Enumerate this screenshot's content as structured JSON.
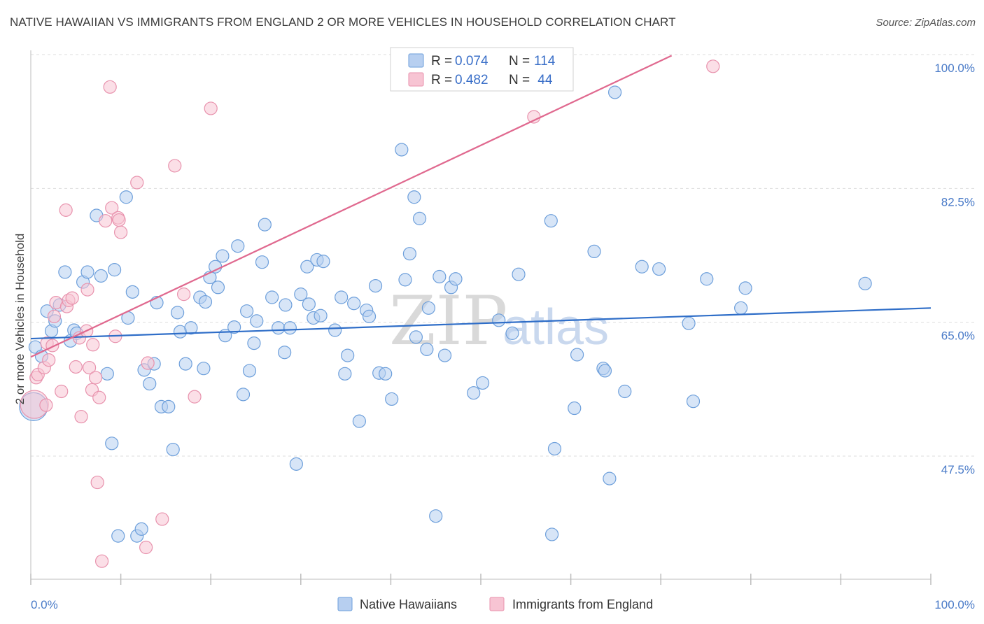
{
  "title": "NATIVE HAWAIIAN VS IMMIGRANTS FROM ENGLAND 2 OR MORE VEHICLES IN HOUSEHOLD CORRELATION CHART",
  "source": "Source: ZipAtlas.com",
  "watermark": {
    "zip": "ZIP",
    "atlas": "atlas"
  },
  "colors": {
    "blue_fill": "#b7cff0",
    "blue_stroke": "#6d9fdb",
    "blue_line": "#2f6ec8",
    "pink_fill": "#f7c4d3",
    "pink_stroke": "#e892ad",
    "pink_line": "#e0698f",
    "tick_text": "#4a7bc8",
    "grid": "#dddddd"
  },
  "legend": {
    "rows": [
      {
        "r_label": "R = ",
        "r_value": "0.074",
        "n_label": "N = ",
        "n_value": "114",
        "color": "blue"
      },
      {
        "r_label": "R = ",
        "r_value": "0.482",
        "n_label": "N = ",
        "n_value": " 44",
        "color": "pink"
      }
    ]
  },
  "bottom_legend": [
    "Native Hawaiians",
    "Immigrants from England"
  ],
  "chart_data": {
    "type": "scatter",
    "title": "NATIVE HAWAIIAN VS IMMIGRANTS FROM ENGLAND 2 OR MORE VEHICLES IN HOUSEHOLD CORRELATION CHART",
    "ylabel": "2 or more Vehicles in Household",
    "xlabel": "",
    "xlim": [
      0,
      100
    ],
    "ylim": [
      30,
      102
    ],
    "x_tick_labels": [
      "0.0%",
      "100.0%"
    ],
    "y_ticks": [
      47.5,
      65.0,
      82.5,
      100.0
    ],
    "y_tick_labels": [
      "47.5%",
      "65.0%",
      "82.5%",
      "100.0%"
    ],
    "grid": "horizontal dashed",
    "legend_position": "top-center",
    "series": [
      {
        "name": "Native Hawaiians",
        "color": "blue",
        "trend": {
          "x": [
            0,
            100
          ],
          "y": [
            64.6,
            68.6
          ]
        },
        "points": [
          [
            0.3,
            55.7,
            3
          ],
          [
            0.5,
            63.5,
            1
          ],
          [
            1.2,
            62.3,
            1
          ],
          [
            1.8,
            68.2,
            1
          ],
          [
            2.3,
            65.6,
            1
          ],
          [
            2.7,
            66.9,
            1
          ],
          [
            3.2,
            69.0,
            1
          ],
          [
            3.8,
            73.3,
            1
          ],
          [
            4.4,
            64.3,
            1
          ],
          [
            4.8,
            65.7,
            1
          ],
          [
            5.1,
            65.3,
            1
          ],
          [
            5.8,
            72.0,
            1
          ],
          [
            6.3,
            73.3,
            1
          ],
          [
            7.3,
            80.7,
            1
          ],
          [
            7.8,
            72.8,
            1
          ],
          [
            8.5,
            60.0,
            1
          ],
          [
            9.0,
            50.9,
            1
          ],
          [
            9.3,
            73.6,
            1
          ],
          [
            9.7,
            38.8,
            1
          ],
          [
            10.6,
            83.1,
            1
          ],
          [
            10.8,
            67.3,
            1
          ],
          [
            11.3,
            70.7,
            1
          ],
          [
            11.8,
            38.8,
            1
          ],
          [
            12.3,
            39.7,
            1
          ],
          [
            12.6,
            60.5,
            1
          ],
          [
            13.2,
            58.7,
            1
          ],
          [
            13.7,
            61.3,
            1
          ],
          [
            14.0,
            69.3,
            1
          ],
          [
            14.5,
            55.7,
            1
          ],
          [
            15.3,
            55.7,
            1
          ],
          [
            15.8,
            50.1,
            1
          ],
          [
            16.3,
            68.0,
            1
          ],
          [
            16.6,
            65.5,
            1
          ],
          [
            17.2,
            61.3,
            1
          ],
          [
            17.8,
            66.0,
            1
          ],
          [
            18.8,
            70.0,
            1
          ],
          [
            19.2,
            60.7,
            1
          ],
          [
            19.4,
            69.4,
            1
          ],
          [
            19.9,
            72.6,
            1
          ],
          [
            20.5,
            74.0,
            1
          ],
          [
            20.8,
            71.3,
            1
          ],
          [
            21.3,
            75.4,
            1
          ],
          [
            21.6,
            65.0,
            1
          ],
          [
            22.6,
            66.1,
            1
          ],
          [
            23.0,
            76.7,
            1
          ],
          [
            23.6,
            57.3,
            1
          ],
          [
            24.0,
            68.2,
            1
          ],
          [
            24.3,
            60.4,
            1
          ],
          [
            24.8,
            64.0,
            1
          ],
          [
            25.1,
            66.9,
            1
          ],
          [
            25.7,
            74.6,
            1
          ],
          [
            26.0,
            79.5,
            1
          ],
          [
            26.8,
            70.0,
            1
          ],
          [
            27.5,
            66.0,
            1
          ],
          [
            28.2,
            62.8,
            1
          ],
          [
            28.3,
            69.0,
            1
          ],
          [
            28.8,
            66.0,
            1
          ],
          [
            29.5,
            48.2,
            1
          ],
          [
            30.0,
            70.4,
            1
          ],
          [
            30.7,
            74.0,
            1
          ],
          [
            30.9,
            69.1,
            1
          ],
          [
            31.4,
            67.3,
            1
          ],
          [
            31.8,
            74.9,
            1
          ],
          [
            32.2,
            67.6,
            1
          ],
          [
            32.5,
            74.7,
            1
          ],
          [
            33.8,
            65.7,
            1
          ],
          [
            34.5,
            70.0,
            1
          ],
          [
            34.9,
            60.0,
            1
          ],
          [
            35.2,
            62.4,
            1
          ],
          [
            35.9,
            69.2,
            1
          ],
          [
            36.5,
            53.8,
            1
          ],
          [
            37.3,
            68.3,
            1
          ],
          [
            37.6,
            67.5,
            1
          ],
          [
            38.3,
            71.5,
            1
          ],
          [
            38.7,
            60.1,
            1
          ],
          [
            39.4,
            60.0,
            1
          ],
          [
            40.1,
            56.7,
            1
          ],
          [
            41.2,
            89.3,
            1
          ],
          [
            41.6,
            72.3,
            1
          ],
          [
            42.1,
            75.7,
            1
          ],
          [
            42.6,
            83.1,
            1
          ],
          [
            42.8,
            64.8,
            1
          ],
          [
            43.2,
            80.3,
            1
          ],
          [
            44.0,
            63.2,
            1
          ],
          [
            44.2,
            68.6,
            1
          ],
          [
            45.0,
            41.4,
            1
          ],
          [
            45.4,
            72.7,
            1
          ],
          [
            46.0,
            62.4,
            1
          ],
          [
            46.7,
            71.3,
            1
          ],
          [
            47.2,
            72.4,
            1
          ],
          [
            49.2,
            57.5,
            1
          ],
          [
            50.2,
            58.8,
            1
          ],
          [
            52.0,
            67.0,
            1
          ],
          [
            53.5,
            65.3,
            1
          ],
          [
            54.2,
            73.0,
            1
          ],
          [
            57.8,
            80.0,
            1
          ],
          [
            57.9,
            39.0,
            1
          ],
          [
            58.2,
            50.2,
            1
          ],
          [
            60.4,
            55.5,
            1
          ],
          [
            60.7,
            62.5,
            1
          ],
          [
            62.6,
            76.0,
            1
          ],
          [
            63.6,
            60.7,
            1
          ],
          [
            63.8,
            60.4,
            1
          ],
          [
            64.3,
            46.3,
            1
          ],
          [
            64.9,
            96.8,
            1
          ],
          [
            66.0,
            57.7,
            1
          ],
          [
            67.9,
            74.0,
            1
          ],
          [
            69.8,
            73.7,
            1
          ],
          [
            73.1,
            66.6,
            1
          ],
          [
            73.6,
            56.4,
            1
          ],
          [
            75.1,
            72.4,
            1
          ],
          [
            78.9,
            68.6,
            1
          ],
          [
            79.4,
            71.2,
            1
          ],
          [
            92.7,
            71.8,
            1
          ]
        ]
      },
      {
        "name": "Immigrants from England",
        "color": "pink",
        "trend": {
          "x": [
            0,
            71.2
          ],
          "y": [
            62.2,
            101.6
          ]
        },
        "points": [
          [
            0.4,
            56.0,
            3
          ],
          [
            0.6,
            59.5,
            1
          ],
          [
            0.8,
            59.9,
            1
          ],
          [
            1.5,
            60.8,
            1
          ],
          [
            1.7,
            55.9,
            1
          ],
          [
            1.8,
            64.0,
            1
          ],
          [
            2.0,
            61.8,
            1
          ],
          [
            2.4,
            63.7,
            1
          ],
          [
            2.6,
            67.5,
            1
          ],
          [
            2.8,
            69.3,
            1
          ],
          [
            3.4,
            57.7,
            1
          ],
          [
            4.0,
            68.8,
            1
          ],
          [
            4.2,
            69.6,
            1
          ],
          [
            4.6,
            69.9,
            1
          ],
          [
            5.0,
            60.9,
            1
          ],
          [
            5.4,
            64.7,
            1
          ],
          [
            5.6,
            54.4,
            1
          ],
          [
            6.2,
            65.6,
            1
          ],
          [
            6.5,
            60.8,
            1
          ],
          [
            6.8,
            57.9,
            1
          ],
          [
            6.9,
            63.8,
            1
          ],
          [
            7.2,
            59.5,
            1
          ],
          [
            7.4,
            45.8,
            1
          ],
          [
            7.6,
            56.9,
            1
          ],
          [
            7.9,
            35.5,
            1
          ],
          [
            8.3,
            80.0,
            1
          ],
          [
            8.8,
            97.5,
            1
          ],
          [
            9.0,
            81.7,
            1
          ],
          [
            9.4,
            64.9,
            1
          ],
          [
            9.7,
            80.4,
            1
          ],
          [
            10.0,
            78.5,
            1
          ],
          [
            11.8,
            85.0,
            1
          ],
          [
            12.8,
            37.3,
            1
          ],
          [
            13.0,
            61.4,
            1
          ],
          [
            14.6,
            41.0,
            1
          ],
          [
            16.0,
            87.2,
            1
          ],
          [
            17.0,
            70.4,
            1
          ],
          [
            18.2,
            57.0,
            1
          ],
          [
            20.0,
            94.7,
            1
          ],
          [
            55.9,
            93.6,
            1
          ],
          [
            75.8,
            100.2,
            1
          ],
          [
            3.9,
            81.4,
            1
          ],
          [
            9.8,
            80.1,
            1
          ],
          [
            6.3,
            71.0,
            1
          ]
        ]
      }
    ]
  }
}
